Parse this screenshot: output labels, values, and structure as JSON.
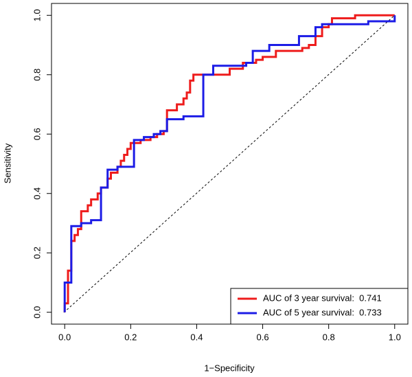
{
  "chart_data": {
    "type": "line",
    "x_label": "1−Specificity",
    "y_label": "Sensitivity",
    "xlim": [
      -0.04,
      1.04
    ],
    "ylim": [
      -0.04,
      1.04
    ],
    "xticks": [
      {
        "value": 0,
        "label": "0.0"
      },
      0.2,
      0.4,
      0.6,
      0.8,
      {
        "value": 1,
        "label": "1.0"
      }
    ],
    "yticks": [
      {
        "value": 0,
        "label": "0.0"
      },
      0.2,
      0.4,
      0.6,
      0.8,
      {
        "value": 1,
        "label": "1.0"
      }
    ],
    "legend": "bottom-right",
    "series": [
      {
        "name": "AUC of 3 year survival:  0.741",
        "color": "#ee1c1c",
        "x": [
          0,
          0,
          0.01,
          0.01,
          0.02,
          0.02,
          0.03,
          0.03,
          0.04,
          0.04,
          0.05,
          0.05,
          0.07,
          0.07,
          0.08,
          0.08,
          0.1,
          0.1,
          0.11,
          0.11,
          0.13,
          0.13,
          0.14,
          0.14,
          0.16,
          0.16,
          0.17,
          0.17,
          0.18,
          0.18,
          0.19,
          0.19,
          0.2,
          0.2,
          0.23,
          0.23,
          0.26,
          0.26,
          0.28,
          0.28,
          0.3,
          0.3,
          0.31,
          0.31,
          0.34,
          0.34,
          0.36,
          0.36,
          0.37,
          0.37,
          0.38,
          0.38,
          0.39,
          0.39,
          0.5,
          0.5,
          0.54,
          0.54,
          0.58,
          0.58,
          0.6,
          0.6,
          0.64,
          0.64,
          0.72,
          0.72,
          0.74,
          0.74,
          0.76,
          0.76,
          0.78,
          0.78,
          0.8,
          0.8,
          0.81,
          0.81,
          0.88,
          0.88,
          1
        ],
        "values": [
          0,
          0.03,
          0.03,
          0.14,
          0.14,
          0.24,
          0.24,
          0.26,
          0.26,
          0.28,
          0.28,
          0.34,
          0.34,
          0.36,
          0.36,
          0.38,
          0.38,
          0.4,
          0.4,
          0.42,
          0.42,
          0.45,
          0.45,
          0.47,
          0.47,
          0.49,
          0.49,
          0.51,
          0.51,
          0.53,
          0.53,
          0.55,
          0.55,
          0.57,
          0.57,
          0.58,
          0.58,
          0.59,
          0.59,
          0.6,
          0.6,
          0.61,
          0.61,
          0.68,
          0.68,
          0.7,
          0.7,
          0.72,
          0.72,
          0.74,
          0.74,
          0.78,
          0.78,
          0.8,
          0.8,
          0.82,
          0.82,
          0.84,
          0.84,
          0.85,
          0.85,
          0.86,
          0.86,
          0.88,
          0.88,
          0.89,
          0.89,
          0.9,
          0.9,
          0.93,
          0.93,
          0.96,
          0.96,
          0.97,
          0.97,
          0.99,
          0.99,
          1,
          1
        ]
      },
      {
        "name": "AUC of 5 year survival:  0.733",
        "color": "#1c1ce6",
        "x": [
          0,
          0,
          0.02,
          0.02,
          0.05,
          0.05,
          0.08,
          0.08,
          0.11,
          0.11,
          0.13,
          0.13,
          0.16,
          0.16,
          0.21,
          0.21,
          0.24,
          0.24,
          0.27,
          0.27,
          0.29,
          0.29,
          0.31,
          0.31,
          0.36,
          0.36,
          0.42,
          0.42,
          0.45,
          0.45,
          0.55,
          0.55,
          0.57,
          0.57,
          0.62,
          0.62,
          0.71,
          0.71,
          0.76,
          0.76,
          0.78,
          0.78,
          0.92,
          0.92,
          1,
          1
        ],
        "values": [
          0,
          0.1,
          0.1,
          0.29,
          0.29,
          0.3,
          0.3,
          0.31,
          0.31,
          0.42,
          0.42,
          0.48,
          0.48,
          0.49,
          0.49,
          0.58,
          0.58,
          0.59,
          0.59,
          0.6,
          0.6,
          0.61,
          0.61,
          0.65,
          0.65,
          0.66,
          0.66,
          0.8,
          0.8,
          0.83,
          0.83,
          0.84,
          0.84,
          0.88,
          0.88,
          0.9,
          0.9,
          0.93,
          0.93,
          0.96,
          0.96,
          0.97,
          0.97,
          0.98,
          0.98,
          1
        ]
      }
    ]
  }
}
